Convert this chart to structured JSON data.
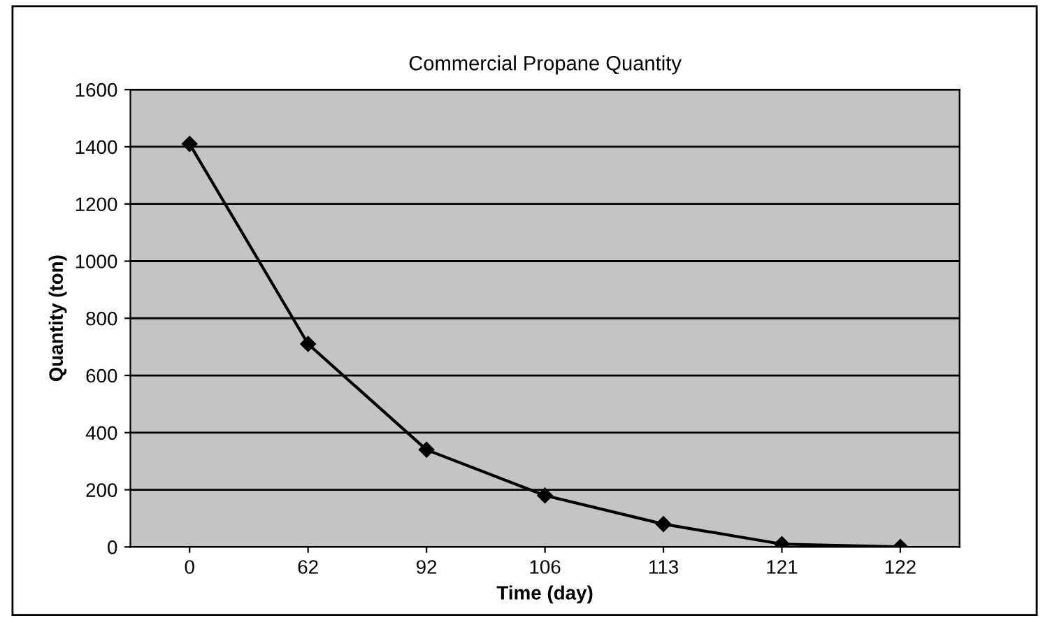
{
  "chart_data": {
    "type": "line",
    "title": "Commercial Propane Quantity",
    "xlabel": "Time (day)",
    "ylabel": "Quantity (ton)",
    "categories": [
      "0",
      "62",
      "92",
      "106",
      "113",
      "121",
      "122"
    ],
    "series": [
      {
        "color": "#000000",
        "values": [
          1410,
          710,
          340,
          180,
          80,
          10,
          0
        ]
      }
    ],
    "ylim": [
      0,
      1600
    ],
    "yticks": [
      0,
      200,
      400,
      600,
      800,
      1000,
      1200,
      1400,
      1600
    ],
    "grid": "y",
    "marker": "diamond",
    "line_style": "solid",
    "legend": false
  }
}
